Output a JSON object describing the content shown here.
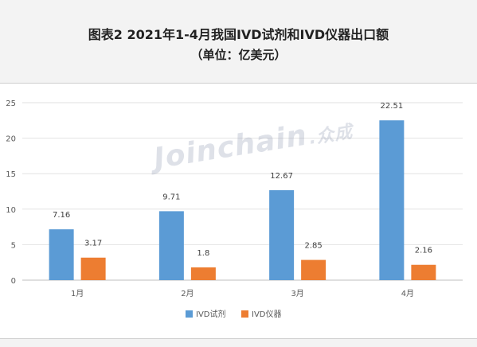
{
  "header": {
    "title": "图表2  2021年1-4月我国IVD试剂和IVD仪器出口额",
    "subtitle": "（单位：亿美元）"
  },
  "watermark": {
    "text": "Joinchain",
    "cn": ".众成"
  },
  "chart_data": {
    "type": "bar",
    "title": "图表2  2021年1-4月我国IVD试剂和IVD仪器出口额",
    "subtitle": "（单位：亿美元）",
    "categories": [
      "1月",
      "2月",
      "3月",
      "4月"
    ],
    "series": [
      {
        "name": "IVD试剂",
        "values": [
          7.16,
          9.71,
          12.67,
          22.51
        ],
        "color": "#5b9bd5"
      },
      {
        "name": "IVD仪器",
        "values": [
          3.17,
          1.8,
          2.85,
          2.16
        ],
        "color": "#ed7d31"
      }
    ],
    "ylim": [
      0,
      25
    ],
    "yticks": [
      0,
      5,
      10,
      15,
      20,
      25
    ],
    "xlabel": "",
    "ylabel": "",
    "grid": true,
    "legend": "bottom"
  }
}
